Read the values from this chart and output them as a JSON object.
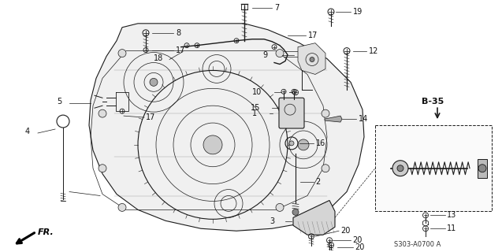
{
  "bg_color": "#ffffff",
  "line_color": "#1a1a1a",
  "label_color": "#111111",
  "fontsize": 7.0,
  "lw_thin": 0.5,
  "lw_med": 0.8,
  "lw_thick": 1.2,
  "s303_text": "S303-A0700 A",
  "b35_text": "B-35"
}
